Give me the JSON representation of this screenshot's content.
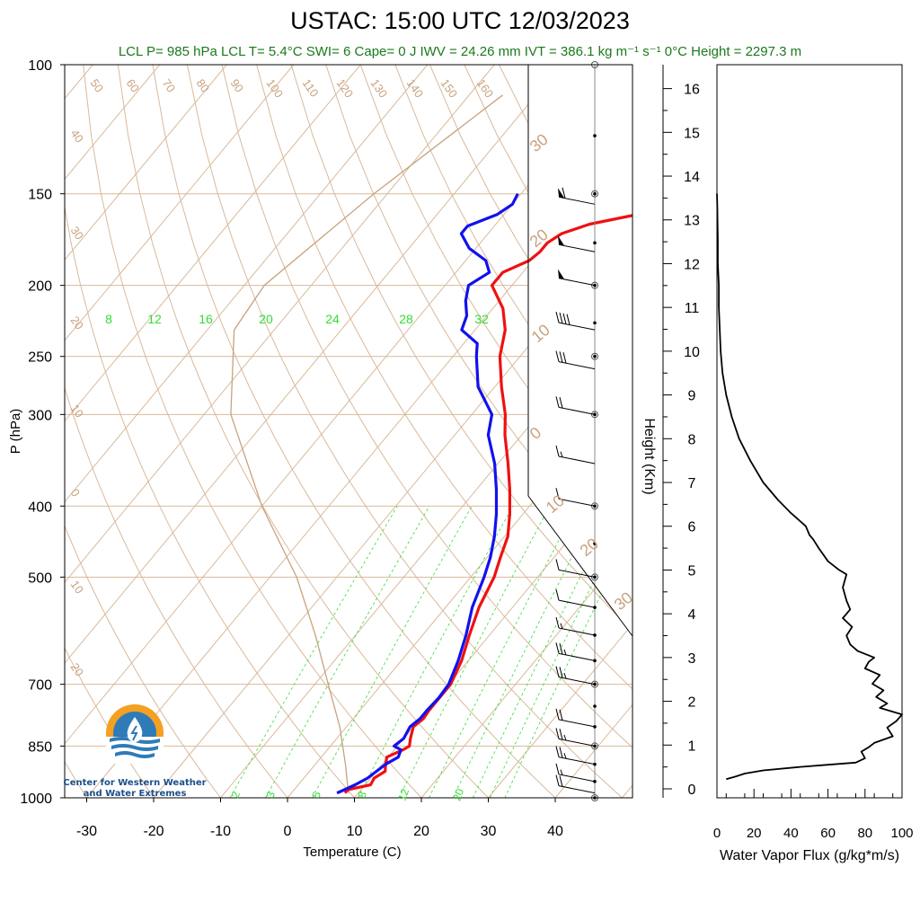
{
  "title": "USTAC: 15:00 UTC 12/03/2023",
  "subtitle": "LCL P= 985 hPa  LCL T= 5.4°C  SWI= 6  Cape= 0 J  IWV = 24.26 mm  IVT = 386.1 kg m⁻¹ s⁻¹  0°C Height = 2297.3 m",
  "logo": {
    "line1": "Center for Western Weather",
    "line2": "and Water Extremes"
  },
  "colors": {
    "temperature": "#ee1111",
    "dewpoint": "#1111ee",
    "isotherm": "#d9b99b",
    "mixing_ratio": "#33dd33",
    "subtitle": "#1a7a1a",
    "flux": "#000000"
  },
  "chart_data": [
    {
      "type": "line",
      "name": "skew-t",
      "xlabel": "Temperature (C)",
      "ylabel": "P (hPa)",
      "ylog": true,
      "x_ticks": [
        -30,
        -20,
        -10,
        0,
        10,
        20,
        30,
        40
      ],
      "pressure_ticks": [
        100,
        150,
        200,
        250,
        300,
        400,
        500,
        700,
        850,
        1000
      ],
      "skew_labels_top": [
        "50",
        "60",
        "70",
        "80",
        "90",
        "100",
        "110",
        "120",
        "130",
        "140",
        "150",
        "160"
      ],
      "skew_labels_left": [
        "40",
        "30",
        "20",
        "10",
        "0",
        "10",
        "20"
      ],
      "skew_labels_right": [
        "30",
        "20",
        "10",
        "0",
        "10",
        "20",
        "30"
      ],
      "mixing_ratio_labels_top": [
        "8",
        "12",
        "16",
        "20",
        "24",
        "28",
        "32"
      ],
      "mixing_ratio_labels_bottom": [
        "2",
        "3",
        "5",
        "8",
        "12",
        "20"
      ],
      "series": [
        {
          "name": "Temperature",
          "p": [
            985,
            975,
            960,
            940,
            920,
            900,
            880,
            860,
            850,
            830,
            800,
            780,
            760,
            730,
            700,
            650,
            600,
            550,
            500,
            470,
            440,
            410,
            380,
            350,
            320,
            300,
            275,
            250,
            230,
            215,
            200,
            192,
            185,
            180,
            175,
            170,
            165,
            160,
            155,
            150
          ],
          "t": [
            8.0,
            8.0,
            10.8,
            10.5,
            11.3,
            10.5,
            9.8,
            11.3,
            11.8,
            11.0,
            10.0,
            10.5,
            10.3,
            10.3,
            10.3,
            9.0,
            7.0,
            5.0,
            3.5,
            2.0,
            0.5,
            -2.0,
            -5.0,
            -8.5,
            -12.5,
            -15.0,
            -19.0,
            -23.0,
            -25.5,
            -28.5,
            -33.0,
            -33.0,
            -30.5,
            -30.0,
            -30.0,
            -29.0,
            -26.0,
            -20.0,
            -21.5,
            -23.0
          ]
        },
        {
          "name": "Dewpoint",
          "p": [
            985,
            975,
            960,
            940,
            920,
            900,
            880,
            860,
            850,
            830,
            800,
            780,
            760,
            730,
            700,
            650,
            600,
            550,
            500,
            470,
            440,
            410,
            380,
            350,
            320,
            300,
            275,
            250,
            240,
            230,
            220,
            210,
            200,
            192,
            185,
            178,
            170,
            166,
            160,
            155,
            150
          ],
          "t": [
            6.8,
            7.5,
            8.5,
            9.5,
            10.0,
            10.5,
            11.5,
            11.0,
            9.5,
            10.0,
            9.5,
            10.0,
            10.0,
            10.2,
            10.0,
            8.5,
            6.5,
            4.0,
            2.0,
            0.5,
            -1.5,
            -4.0,
            -7.0,
            -10.5,
            -15.0,
            -17.0,
            -22.5,
            -26.5,
            -28.0,
            -32.0,
            -33.0,
            -35.0,
            -36.5,
            -35.0,
            -37.0,
            -41.0,
            -44.0,
            -44.0,
            -41.0,
            -40.0,
            -40.5
          ]
        }
      ],
      "wind_barbs_hpa": [
        985,
        950,
        900,
        850,
        800,
        700,
        650,
        600,
        550,
        500,
        400,
        350,
        300,
        260,
        230,
        200,
        180,
        155
      ],
      "wind_barbs_speed_kt": [
        20,
        15,
        25,
        25,
        20,
        25,
        25,
        15,
        10,
        10,
        10,
        15,
        20,
        30,
        40,
        50,
        50,
        60
      ],
      "ylim": [
        1000,
        100
      ],
      "xlim": [
        -33,
        52
      ]
    },
    {
      "type": "line",
      "name": "water-vapor-flux",
      "xlabel": "Water Vapor Flux (g/kg*m/s)",
      "ylabel": "Height (Km)",
      "xlim": [
        0,
        100
      ],
      "ylim": [
        0,
        16.4
      ],
      "x_ticks": [
        0,
        20,
        40,
        60,
        80,
        100
      ],
      "y_ticks": [
        0,
        1,
        2,
        3,
        4,
        5,
        6,
        7,
        8,
        9,
        10,
        11,
        12,
        13,
        14,
        15,
        16
      ],
      "height_km": [
        0.22,
        0.28,
        0.35,
        0.42,
        0.5,
        0.55,
        0.6,
        0.7,
        0.85,
        0.95,
        1.05,
        1.2,
        1.4,
        1.55,
        1.7,
        1.85,
        1.95,
        2.1,
        2.25,
        2.4,
        2.6,
        2.75,
        2.9,
        3.0,
        3.15,
        3.3,
        3.5,
        3.7,
        3.9,
        4.1,
        4.3,
        4.6,
        4.9,
        5.0,
        5.2,
        5.5,
        5.7,
        5.8,
        6.0,
        6.3,
        6.6,
        7.0,
        7.5,
        8.0,
        8.5,
        9.0,
        9.5,
        10.0,
        10.5,
        11.0,
        11.5,
        12.0,
        12.5,
        13.0,
        13.3,
        13.6
      ],
      "flux": [
        5,
        10,
        15,
        25,
        45,
        60,
        75,
        80,
        78,
        82,
        85,
        95,
        92,
        97,
        100,
        88,
        92,
        86,
        90,
        84,
        88,
        80,
        82,
        85,
        76,
        72,
        70,
        73,
        68,
        72,
        70,
        68,
        70,
        66,
        60,
        55,
        52,
        50,
        48,
        40,
        33,
        25,
        18,
        12,
        8,
        5,
        3,
        2,
        1.5,
        1,
        1,
        0.5,
        0.5,
        0.3,
        0.2,
        0
      ]
    }
  ]
}
